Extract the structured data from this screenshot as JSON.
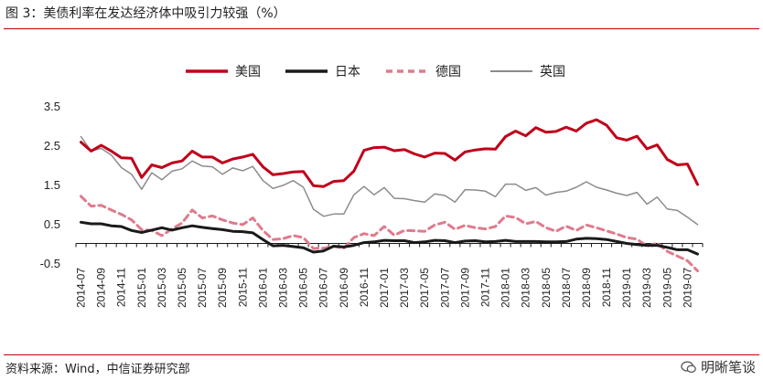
{
  "title": "图 3：美债利率在发达经济体中吸引力较强（%）",
  "source": "资料来源：Wind，中信证券研究部",
  "watermark": "明晰笔谈",
  "chart_data": {
    "type": "line",
    "ylim": [
      -0.5,
      3.5
    ],
    "yticks": [
      "3.5",
      "2.5",
      "1.5",
      "0.5",
      "-0.5"
    ],
    "grid": false,
    "legend_position": "top",
    "x_tick_labels": [
      "2014-07",
      "2014-09",
      "2014-11",
      "2015-01",
      "2015-03",
      "2015-05",
      "2015-07",
      "2015-09",
      "2015-11",
      "2016-01",
      "2016-03",
      "2016-05",
      "2016-07",
      "2016-09",
      "2016-11",
      "2017-01",
      "2017-03",
      "2017-05",
      "2017-07",
      "2017-09",
      "2017-11",
      "2018-01",
      "2018-03",
      "2018-05",
      "2018-07",
      "2018-09",
      "2018-11",
      "2019-01",
      "2019-03",
      "2019-05",
      "2019-07"
    ],
    "x": [
      "2014-07",
      "2014-08",
      "2014-09",
      "2014-10",
      "2014-11",
      "2014-12",
      "2015-01",
      "2015-02",
      "2015-03",
      "2015-04",
      "2015-05",
      "2015-06",
      "2015-07",
      "2015-08",
      "2015-09",
      "2015-10",
      "2015-11",
      "2015-12",
      "2016-01",
      "2016-02",
      "2016-03",
      "2016-04",
      "2016-05",
      "2016-06",
      "2016-07",
      "2016-08",
      "2016-09",
      "2016-10",
      "2016-11",
      "2016-12",
      "2017-01",
      "2017-02",
      "2017-03",
      "2017-04",
      "2017-05",
      "2017-06",
      "2017-07",
      "2017-08",
      "2017-09",
      "2017-10",
      "2017-11",
      "2017-12",
      "2018-01",
      "2018-02",
      "2018-03",
      "2018-04",
      "2018-05",
      "2018-06",
      "2018-07",
      "2018-08",
      "2018-09",
      "2018-10",
      "2018-11",
      "2018-12",
      "2019-01",
      "2019-02",
      "2019-03",
      "2019-04",
      "2019-05",
      "2019-06",
      "2019-07",
      "2019-08"
    ],
    "series": [
      {
        "name": "美国",
        "color": "#c0001a",
        "style": "solid",
        "width": 3,
        "values": [
          2.58,
          2.35,
          2.5,
          2.35,
          2.18,
          2.17,
          1.68,
          2.0,
          1.93,
          2.05,
          2.1,
          2.35,
          2.2,
          2.2,
          2.05,
          2.15,
          2.2,
          2.27,
          1.95,
          1.75,
          1.78,
          1.82,
          1.83,
          1.47,
          1.45,
          1.58,
          1.6,
          1.84,
          2.37,
          2.44,
          2.45,
          2.36,
          2.39,
          2.28,
          2.2,
          2.3,
          2.29,
          2.12,
          2.33,
          2.38,
          2.41,
          2.4,
          2.72,
          2.86,
          2.74,
          2.95,
          2.83,
          2.85,
          2.96,
          2.86,
          3.06,
          3.15,
          3.01,
          2.69,
          2.63,
          2.73,
          2.41,
          2.51,
          2.14,
          2.0,
          2.02,
          1.5
        ]
      },
      {
        "name": "日本",
        "color": "#1a1a1a",
        "style": "solid",
        "width": 3,
        "values": [
          0.54,
          0.5,
          0.5,
          0.45,
          0.43,
          0.33,
          0.28,
          0.34,
          0.4,
          0.34,
          0.4,
          0.45,
          0.41,
          0.38,
          0.35,
          0.31,
          0.3,
          0.27,
          0.1,
          -0.06,
          -0.05,
          -0.08,
          -0.11,
          -0.22,
          -0.19,
          -0.07,
          -0.09,
          -0.05,
          0.02,
          0.04,
          0.08,
          0.07,
          0.07,
          0.02,
          0.04,
          0.08,
          0.07,
          0.02,
          0.06,
          0.07,
          0.04,
          0.05,
          0.08,
          0.05,
          0.05,
          0.05,
          0.04,
          0.04,
          0.05,
          0.11,
          0.13,
          0.12,
          0.1,
          0.05,
          0.0,
          -0.03,
          -0.05,
          -0.05,
          -0.1,
          -0.16,
          -0.16,
          -0.27
        ]
      },
      {
        "name": "德国",
        "color": "#e07a8c",
        "style": "dashed",
        "width": 3,
        "values": [
          1.2,
          0.95,
          0.97,
          0.85,
          0.74,
          0.6,
          0.35,
          0.33,
          0.2,
          0.37,
          0.52,
          0.85,
          0.65,
          0.7,
          0.6,
          0.52,
          0.48,
          0.65,
          0.33,
          0.1,
          0.12,
          0.2,
          0.15,
          -0.13,
          -0.12,
          -0.07,
          -0.12,
          0.15,
          0.25,
          0.2,
          0.43,
          0.21,
          0.33,
          0.32,
          0.31,
          0.47,
          0.54,
          0.36,
          0.46,
          0.4,
          0.37,
          0.43,
          0.7,
          0.66,
          0.5,
          0.56,
          0.4,
          0.31,
          0.44,
          0.33,
          0.47,
          0.4,
          0.32,
          0.24,
          0.15,
          0.11,
          -0.07,
          0.01,
          -0.2,
          -0.32,
          -0.44,
          -0.7
        ]
      },
      {
        "name": "英国",
        "color": "#8c8c8c",
        "style": "solid",
        "width": 1.5,
        "values": [
          2.72,
          2.35,
          2.42,
          2.25,
          1.93,
          1.76,
          1.38,
          1.8,
          1.62,
          1.84,
          1.9,
          2.1,
          1.97,
          1.95,
          1.76,
          1.92,
          1.85,
          1.96,
          1.6,
          1.4,
          1.48,
          1.6,
          1.43,
          0.87,
          0.69,
          0.75,
          0.75,
          1.24,
          1.45,
          1.24,
          1.42,
          1.15,
          1.14,
          1.09,
          1.05,
          1.26,
          1.22,
          1.05,
          1.37,
          1.36,
          1.33,
          1.19,
          1.51,
          1.51,
          1.35,
          1.42,
          1.23,
          1.3,
          1.33,
          1.43,
          1.57,
          1.43,
          1.36,
          1.28,
          1.22,
          1.3,
          1.0,
          1.18,
          0.88,
          0.84,
          0.67,
          0.48
        ]
      }
    ]
  }
}
